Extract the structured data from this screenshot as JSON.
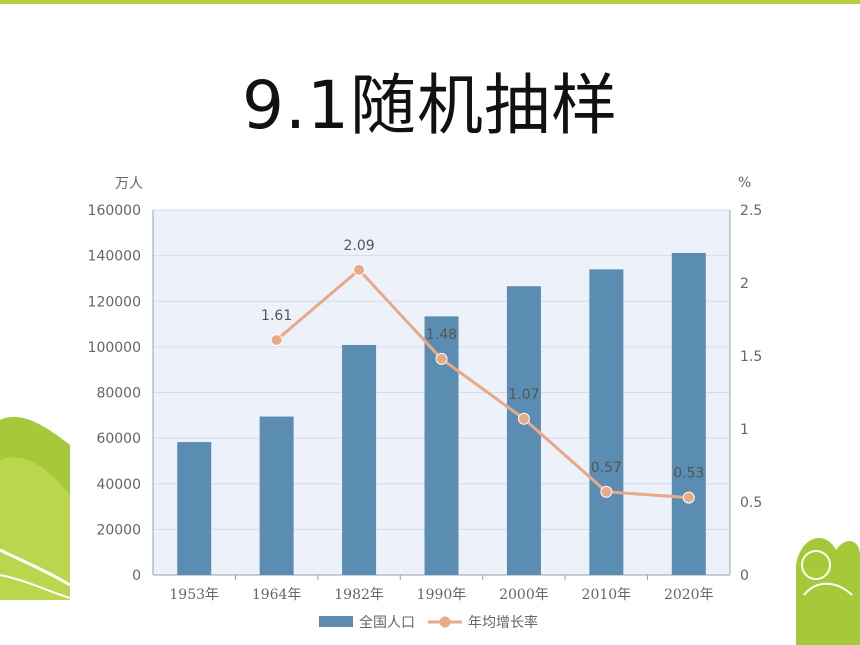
{
  "slide": {
    "title": "9.1随机抽样"
  },
  "chart_data": {
    "type": "bar",
    "categories": [
      "1953年",
      "1964年",
      "1982年",
      "1990年",
      "2000年",
      "2010年",
      "2020年"
    ],
    "series": [
      {
        "name": "全国人口",
        "type": "bar",
        "axis": "left",
        "color": "#5b8db3",
        "values": [
          58260,
          69458,
          100818,
          113368,
          126583,
          133972,
          141178
        ]
      },
      {
        "name": "年均增长率",
        "type": "line",
        "axis": "right",
        "color": "#e8a988",
        "values": [
          null,
          1.61,
          2.09,
          1.48,
          1.07,
          0.57,
          0.53
        ],
        "labels": [
          "",
          "1.61",
          "2.09",
          "1.48",
          "1.07",
          "0.57",
          "0.53"
        ]
      }
    ],
    "y_left": {
      "unit": "万人",
      "range": [
        0,
        160000
      ],
      "ticks": [
        "0",
        "20000",
        "40000",
        "60000",
        "80000",
        "100000",
        "120000",
        "140000",
        "160000"
      ]
    },
    "y_right": {
      "unit": "%",
      "range": [
        0,
        2.5
      ],
      "ticks": [
        "0",
        "0.5",
        "1",
        "1.5",
        "2",
        "2.5"
      ]
    },
    "plot_background": "#edf1fa",
    "grid": true,
    "legend_position": "bottom"
  }
}
